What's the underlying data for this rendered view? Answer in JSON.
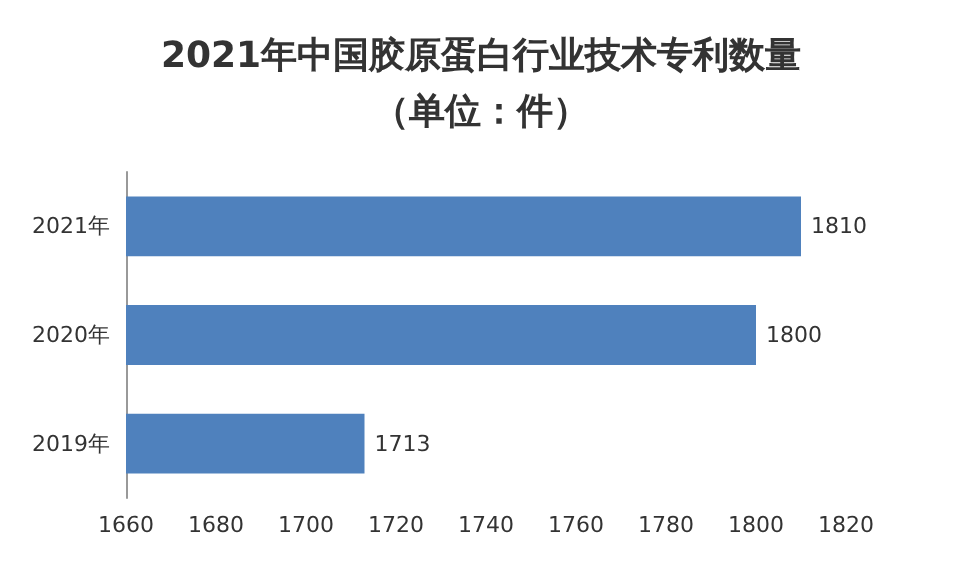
{
  "chart_data": {
    "type": "bar",
    "orientation": "horizontal",
    "title": "2021年中国胶原蛋白行业技术专利数量",
    "subtitle": "（单位：件）",
    "categories": [
      "2021年",
      "2020年",
      "2019年"
    ],
    "values": [
      1810,
      1800,
      1713
    ],
    "color": "#4f81bd",
    "xlim": [
      1660,
      1820
    ],
    "xticks": [
      1660,
      1680,
      1700,
      1720,
      1740,
      1760,
      1780,
      1800,
      1820
    ],
    "data_labels": true,
    "grid": false
  }
}
